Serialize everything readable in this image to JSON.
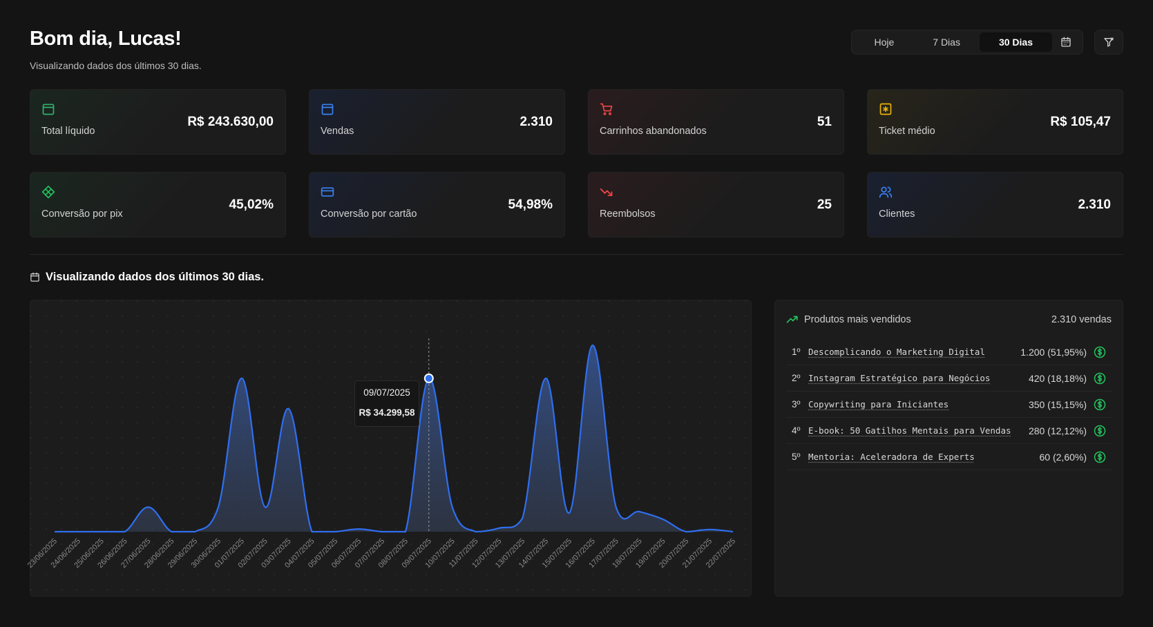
{
  "header": {
    "greeting": "Bom dia, Lucas!",
    "subtitle": "Visualizando dados dos últimos 30 dias.",
    "periods": [
      {
        "label": "Hoje",
        "active": false
      },
      {
        "label": "7 Dias",
        "active": false
      },
      {
        "label": "30 Dias",
        "active": true
      }
    ]
  },
  "cards": [
    {
      "label": "Total líquido",
      "value": "R$ 243.630,00",
      "icon": "wallet-icon",
      "accent": "#2fb36b"
    },
    {
      "label": "Vendas",
      "value": "2.310",
      "icon": "wallet-icon",
      "accent": "#3b82f6"
    },
    {
      "label": "Carrinhos abandonados",
      "value": "51",
      "icon": "cart-icon",
      "accent": "#ef4444"
    },
    {
      "label": "Ticket médio",
      "value": "R$ 105,47",
      "icon": "ticket-icon",
      "accent": "#eab308"
    },
    {
      "label": "Conversão por pix",
      "value": "45,02%",
      "icon": "pix-icon",
      "accent": "#22c55e"
    },
    {
      "label": "Conversão por cartão",
      "value": "54,98%",
      "icon": "credit-card-icon",
      "accent": "#3b82f6"
    },
    {
      "label": "Reembolsos",
      "value": "25",
      "icon": "trending-down-icon",
      "accent": "#ef4444"
    },
    {
      "label": "Clientes",
      "value": "2.310",
      "icon": "users-icon",
      "accent": "#3b82f6"
    }
  ],
  "section_title": "Visualizando dados dos últimos 30 dias.",
  "tooltip": {
    "date": "09/07/2025",
    "value": "R$ 34.299,58"
  },
  "chart_data": {
    "type": "area",
    "x": [
      "23/06/2025",
      "24/06/2025",
      "25/06/2025",
      "26/06/2025",
      "27/06/2025",
      "28/06/2025",
      "29/06/2025",
      "30/06/2025",
      "01/07/2025",
      "02/07/2025",
      "03/07/2025",
      "04/07/2025",
      "05/07/2025",
      "06/07/2025",
      "07/07/2025",
      "08/07/2025",
      "09/07/2025",
      "10/07/2025",
      "11/07/2025",
      "12/07/2025",
      "13/07/2025",
      "14/07/2025",
      "15/07/2025",
      "16/07/2025",
      "17/07/2025",
      "18/07/2025",
      "19/07/2025",
      "20/07/2025",
      "21/07/2025",
      "22/07/2025"
    ],
    "values": [
      0,
      0,
      0,
      0,
      5500,
      0,
      0,
      5500,
      34300,
      5500,
      27500,
      0,
      0,
      600,
      0,
      0,
      34300,
      5500,
      0,
      800,
      3000,
      34300,
      4200,
      41700,
      5500,
      4500,
      2800,
      0,
      500,
      0
    ],
    "highlight_index": 16,
    "xlabel": "",
    "ylabel": "",
    "grid": false
  },
  "products": {
    "title": "Produtos mais vendidos",
    "total": "2.310 vendas",
    "items": [
      {
        "rank": "1º",
        "name": "Descomplicando o Marketing Digital",
        "count": "1.200 (51,95%)"
      },
      {
        "rank": "2º",
        "name": "Instagram Estratégico para Negócios",
        "count": "420 (18,18%)"
      },
      {
        "rank": "3º",
        "name": "Copywriting para Iniciantes",
        "count": "350 (15,15%)"
      },
      {
        "rank": "4º",
        "name": "E-book: 50 Gatilhos Mentais para Vendas",
        "count": "280 (12,12%)"
      },
      {
        "rank": "5º",
        "name": "Mentoria: Aceleradora de Experts",
        "count": "60 (2,60%)"
      }
    ]
  }
}
